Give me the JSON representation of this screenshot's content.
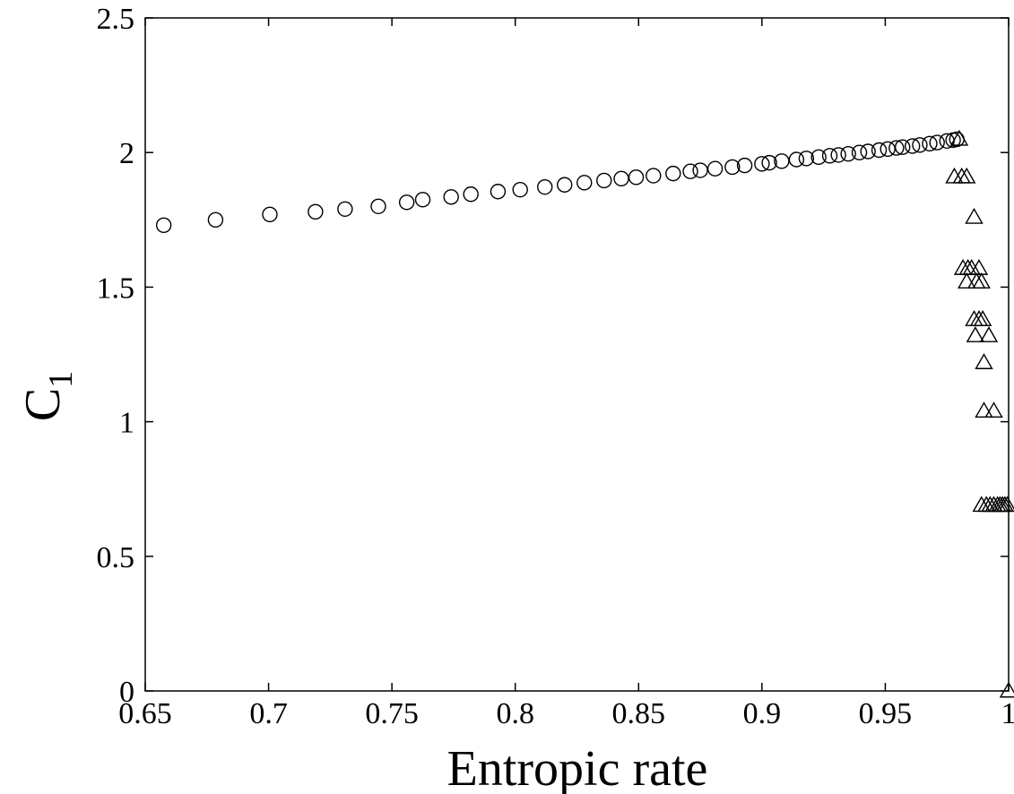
{
  "chart_data": {
    "type": "scatter",
    "title": "",
    "xlabel": "Entropic rate",
    "ylabel": "C",
    "ylabel_subscript": "1",
    "xlim": [
      0.65,
      1.0
    ],
    "ylim": [
      0,
      2.5
    ],
    "xticks": [
      0.65,
      0.7,
      0.75,
      0.8,
      0.85,
      0.9,
      0.95,
      1.0
    ],
    "xtick_labels": [
      "0.65",
      "0.7",
      "0.75",
      "0.8",
      "0.85",
      "0.9",
      "0.95",
      "1"
    ],
    "yticks": [
      0,
      0.5,
      1.0,
      1.5,
      2.0,
      2.5
    ],
    "ytick_labels": [
      "0",
      "0.5",
      "1",
      "1.5",
      "2",
      "2.5"
    ],
    "grid": false,
    "legend": "none",
    "series": [
      {
        "marker": "circle",
        "color": "#000000",
        "points": [
          [
            0.6575,
            1.73
          ],
          [
            0.6785,
            1.75
          ],
          [
            0.7005,
            1.77
          ],
          [
            0.719,
            1.78
          ],
          [
            0.731,
            1.79
          ],
          [
            0.7445,
            1.8
          ],
          [
            0.756,
            1.815
          ],
          [
            0.7625,
            1.825
          ],
          [
            0.774,
            1.835
          ],
          [
            0.782,
            1.845
          ],
          [
            0.793,
            1.855
          ],
          [
            0.802,
            1.862
          ],
          [
            0.812,
            1.872
          ],
          [
            0.82,
            1.88
          ],
          [
            0.828,
            1.888
          ],
          [
            0.836,
            1.896
          ],
          [
            0.843,
            1.903
          ],
          [
            0.849,
            1.908
          ],
          [
            0.856,
            1.914
          ],
          [
            0.864,
            1.922
          ],
          [
            0.871,
            1.93
          ],
          [
            0.875,
            1.934
          ],
          [
            0.881,
            1.94
          ],
          [
            0.888,
            1.946
          ],
          [
            0.893,
            1.952
          ],
          [
            0.9,
            1.958
          ],
          [
            0.903,
            1.962
          ],
          [
            0.908,
            1.968
          ],
          [
            0.914,
            1.974
          ],
          [
            0.918,
            1.978
          ],
          [
            0.923,
            1.983
          ],
          [
            0.9275,
            1.988
          ],
          [
            0.931,
            1.991
          ],
          [
            0.935,
            1.995
          ],
          [
            0.9395,
            2.0
          ],
          [
            0.943,
            2.004
          ],
          [
            0.9475,
            2.009
          ],
          [
            0.951,
            2.013
          ],
          [
            0.9545,
            2.017
          ],
          [
            0.957,
            2.02
          ],
          [
            0.961,
            2.024
          ],
          [
            0.964,
            2.028
          ],
          [
            0.968,
            2.033
          ],
          [
            0.971,
            2.037
          ],
          [
            0.975,
            2.043
          ],
          [
            0.9775,
            2.046
          ],
          [
            0.979,
            2.049
          ]
        ]
      },
      {
        "marker": "triangle",
        "color": "#000000",
        "points": [
          [
            0.98,
            2.05
          ],
          [
            0.978,
            1.91
          ],
          [
            0.981,
            1.91
          ],
          [
            0.983,
            1.91
          ],
          [
            0.986,
            1.76
          ],
          [
            0.9815,
            1.57
          ],
          [
            0.9835,
            1.57
          ],
          [
            0.985,
            1.57
          ],
          [
            0.988,
            1.57
          ],
          [
            0.983,
            1.52
          ],
          [
            0.987,
            1.52
          ],
          [
            0.989,
            1.52
          ],
          [
            0.986,
            1.38
          ],
          [
            0.988,
            1.38
          ],
          [
            0.9895,
            1.38
          ],
          [
            0.9865,
            1.32
          ],
          [
            0.992,
            1.32
          ],
          [
            0.99,
            1.22
          ],
          [
            0.99,
            1.04
          ],
          [
            0.994,
            1.04
          ],
          [
            0.989,
            0.69
          ],
          [
            0.991,
            0.69
          ],
          [
            0.9925,
            0.69
          ],
          [
            0.994,
            0.69
          ],
          [
            0.9955,
            0.69
          ],
          [
            0.9965,
            0.69
          ],
          [
            0.9975,
            0.69
          ],
          [
            0.9985,
            0.69
          ],
          [
            0.9995,
            0.69
          ],
          [
            1.0,
            0.0
          ]
        ]
      }
    ]
  }
}
